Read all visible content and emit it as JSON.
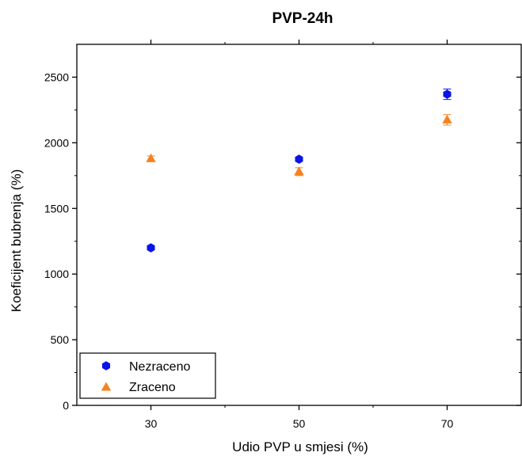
{
  "chart_data": {
    "type": "scatter",
    "title": "PVP-24h",
    "xlabel": "Udio PVP u smjesi (%)",
    "ylabel": "Koeficijent bubrenja (%)",
    "x_ticks": [
      30,
      50,
      70
    ],
    "y_ticks": [
      0,
      500,
      1000,
      1500,
      2000,
      2500
    ],
    "xlim": [
      20,
      80
    ],
    "ylim": [
      0,
      2750
    ],
    "grid": false,
    "legend_position": "bottom-left",
    "series": [
      {
        "name": "Nezraceno",
        "marker": "hexagon",
        "color": "#0a14e6",
        "x": [
          30,
          50,
          70
        ],
        "y": [
          1200,
          1875,
          2370
        ],
        "err": [
          10,
          15,
          40
        ]
      },
      {
        "name": "Zraceno",
        "marker": "triangle",
        "color": "#f5821e",
        "x": [
          30,
          50,
          70
        ],
        "y": [
          1880,
          1780,
          2175
        ],
        "err": [
          20,
          30,
          40
        ]
      }
    ]
  }
}
